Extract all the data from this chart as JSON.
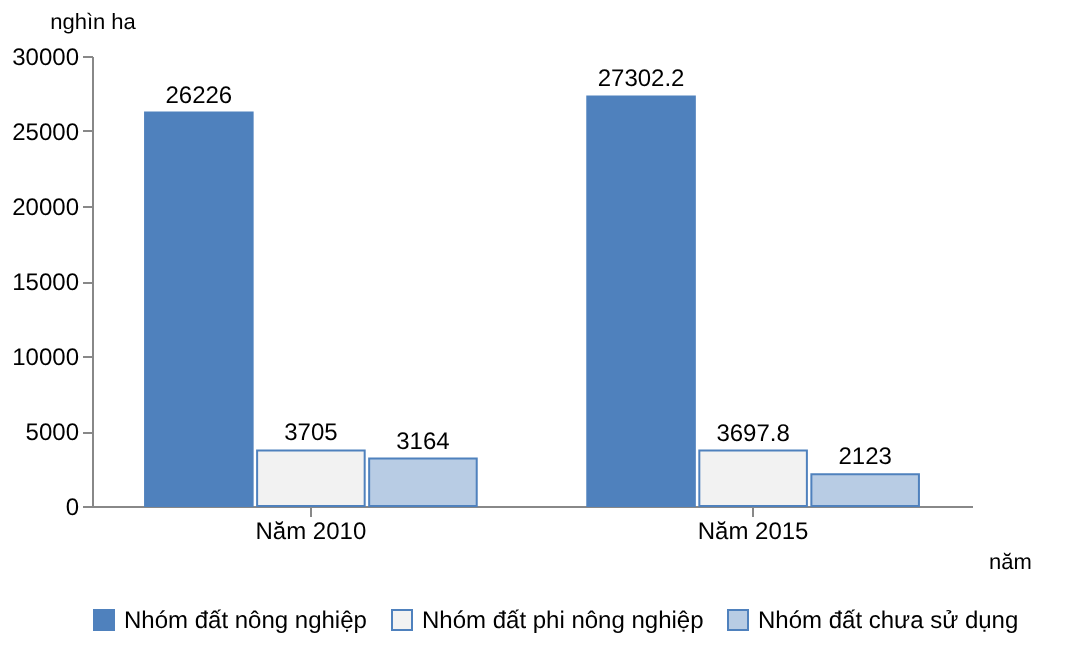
{
  "chart_data": {
    "type": "bar",
    "ylabel": "nghìn ha",
    "xlabel": "năm",
    "categories": [
      "Năm 2010",
      "Năm 2015"
    ],
    "series": [
      {
        "name": "Nhóm đất nông nghiệp",
        "color": "#4f81bd",
        "values": [
          26226,
          27302.2
        ]
      },
      {
        "name": "Nhóm đất phi nông nghiệp",
        "color": "#f2f2f2",
        "values": [
          3705,
          3697.8
        ]
      },
      {
        "name": "Nhóm đất chưa sử dụng",
        "color": "#b8cce4",
        "values": [
          3164,
          2123
        ]
      }
    ],
    "ylim": [
      0,
      30000
    ],
    "yticks": [
      0,
      5000,
      10000,
      15000,
      20000,
      25000,
      30000
    ],
    "grid": false,
    "legend": "bottom",
    "data_labels": true
  }
}
